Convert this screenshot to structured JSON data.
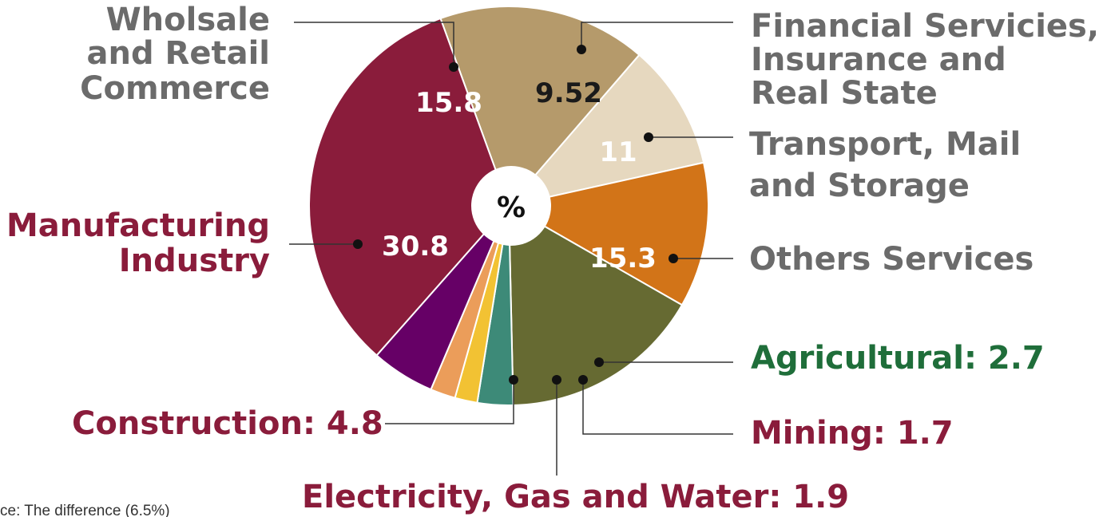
{
  "chart_data": {
    "type": "pie",
    "unit": "%",
    "slices": [
      {
        "label": "Wholsale and Retail Commerce",
        "value": 15.8,
        "value_text": "15.8",
        "color": "#b59a6b",
        "value_color": "#ffffff"
      },
      {
        "label": "Financial Servicies, Insurance and Real State",
        "value": 9.52,
        "value_text": "9.52",
        "color": "#e6d8bf",
        "value_color": "#1a1a1a"
      },
      {
        "label": "Transport, Mail and Storage",
        "value": 11,
        "value_text": "11",
        "color": "#d27418",
        "value_color": "#ffffff"
      },
      {
        "label": "Others Services",
        "value": 15.3,
        "value_text": "15.3",
        "color": "#666a32",
        "value_color": "#ffffff"
      },
      {
        "label": "Agricultural",
        "value": 2.7,
        "value_text": "2.7",
        "color": "#3d8a78"
      },
      {
        "label": "Mining",
        "value": 1.7,
        "value_text": "1.7",
        "color": "#f2c233"
      },
      {
        "label": "Electricity, Gas and Water",
        "value": 1.9,
        "value_text": "1.9",
        "color": "#eb9d5a"
      },
      {
        "label": "Construction",
        "value": 4.8,
        "value_text": "4.8",
        "color": "#660066"
      },
      {
        "label": "Manufacturing Industry",
        "value": 30.8,
        "value_text": "30.8",
        "color": "#8a1c3b",
        "value_color": "#ffffff"
      }
    ],
    "start_angle_deg": -20
  },
  "labels": {
    "wholesale": [
      "Wholsale",
      "and Retail",
      "Commerce"
    ],
    "financial": [
      "Financial Servicies,",
      "Insurance and",
      "Real State"
    ],
    "transport": [
      "Transport, Mail",
      "and Storage"
    ],
    "others": "Others Services",
    "agricultural": "Agricultural: 2.7",
    "mining": "Mining:  1.7",
    "electricity": "Electricity, Gas and Water: 1.9",
    "construction": "Construction: 4.8",
    "manufacturing": [
      "Manufacturing",
      "Industry"
    ]
  },
  "center_label": "%",
  "footnote": "ce: The difference (6.5%)",
  "colors": {
    "gray_text": "#6b6b6b",
    "wine_text": "#8a1c3b",
    "green_text": "#1f6e3a"
  }
}
